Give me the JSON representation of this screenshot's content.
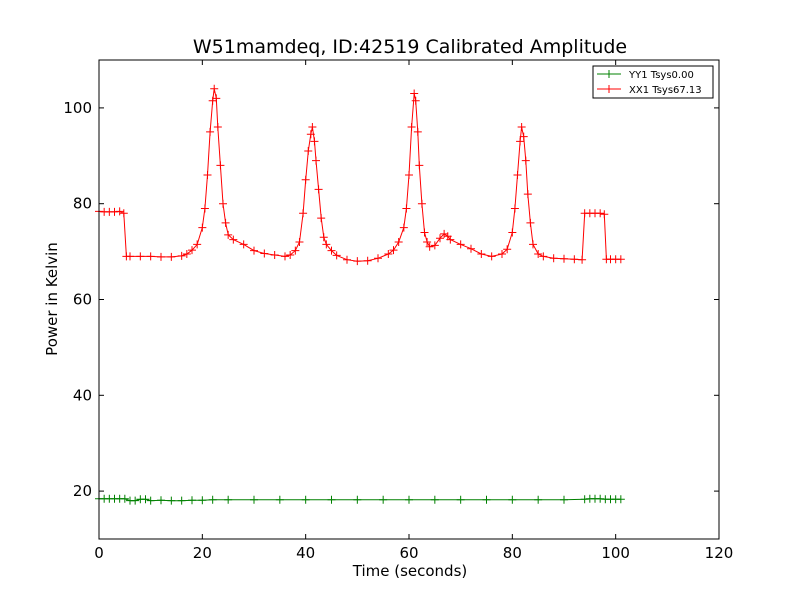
{
  "chart_data": {
    "type": "line",
    "title": "W51mamdeq, ID:42519 Calibrated Amplitude",
    "xlabel": "Time (seconds)",
    "ylabel": "Power in Kelvin",
    "xlim": [
      0,
      120
    ],
    "ylim": [
      10,
      110
    ],
    "xticks": [
      0,
      20,
      40,
      60,
      80,
      100,
      120
    ],
    "yticks": [
      20,
      40,
      60,
      80,
      100
    ],
    "grid": false,
    "legend_position": "top-right",
    "marker": "plus",
    "series": [
      {
        "name": "YY1 Tsys0.00",
        "color": "#008000",
        "points": [
          [
            0,
            18.4
          ],
          [
            1,
            18.4
          ],
          [
            2,
            18.4
          ],
          [
            3,
            18.4
          ],
          [
            4,
            18.4
          ],
          [
            5,
            18.4
          ],
          [
            6,
            18.0
          ],
          [
            7,
            18.0
          ],
          [
            8,
            18.3
          ],
          [
            9,
            18.3
          ],
          [
            10,
            18.0
          ],
          [
            12,
            18.1
          ],
          [
            14,
            18.0
          ],
          [
            16,
            18.0
          ],
          [
            18,
            18.1
          ],
          [
            20,
            18.1
          ],
          [
            22,
            18.2
          ],
          [
            25,
            18.2
          ],
          [
            30,
            18.2
          ],
          [
            35,
            18.2
          ],
          [
            40,
            18.2
          ],
          [
            45,
            18.2
          ],
          [
            50,
            18.2
          ],
          [
            55,
            18.2
          ],
          [
            60,
            18.2
          ],
          [
            65,
            18.2
          ],
          [
            70,
            18.2
          ],
          [
            75,
            18.2
          ],
          [
            80,
            18.2
          ],
          [
            85,
            18.2
          ],
          [
            90,
            18.2
          ],
          [
            94,
            18.3
          ],
          [
            95,
            18.4
          ],
          [
            96,
            18.4
          ],
          [
            97,
            18.4
          ],
          [
            98,
            18.3
          ],
          [
            99,
            18.3
          ],
          [
            100,
            18.3
          ],
          [
            101,
            18.3
          ]
        ]
      },
      {
        "name": "XX1 Tsys67.13",
        "color": "#ff0000",
        "points": [
          [
            0,
            78.4
          ],
          [
            1,
            78.3
          ],
          [
            2,
            78.3
          ],
          [
            3,
            78.3
          ],
          [
            4,
            78.4
          ],
          [
            4.8,
            78.0
          ],
          [
            5.3,
            69.0
          ],
          [
            6,
            69.0
          ],
          [
            8,
            69.0
          ],
          [
            10,
            69.0
          ],
          [
            12,
            68.9
          ],
          [
            14,
            68.9
          ],
          [
            16,
            69.1
          ],
          [
            17,
            69.5
          ],
          [
            18,
            70.3
          ],
          [
            19,
            71.5
          ],
          [
            20,
            75.0
          ],
          [
            20.5,
            79.0
          ],
          [
            21,
            86.0
          ],
          [
            21.5,
            95.0
          ],
          [
            22,
            101.5
          ],
          [
            22.3,
            104.0
          ],
          [
            22.7,
            102.0
          ],
          [
            23,
            96.0
          ],
          [
            23.5,
            88.0
          ],
          [
            24,
            80.0
          ],
          [
            24.5,
            76.0
          ],
          [
            25,
            73.5
          ],
          [
            26,
            72.5
          ],
          [
            28,
            71.5
          ],
          [
            30,
            70.2
          ],
          [
            32,
            69.6
          ],
          [
            34,
            69.3
          ],
          [
            36,
            69.0
          ],
          [
            37,
            69.3
          ],
          [
            38,
            70.2
          ],
          [
            38.8,
            72.0
          ],
          [
            39.5,
            78.0
          ],
          [
            40,
            85.0
          ],
          [
            40.5,
            91.0
          ],
          [
            41,
            94.5
          ],
          [
            41.3,
            96.0
          ],
          [
            41.7,
            93.0
          ],
          [
            42,
            89.0
          ],
          [
            42.5,
            83.0
          ],
          [
            43,
            77.0
          ],
          [
            43.5,
            73.0
          ],
          [
            44,
            71.5
          ],
          [
            45,
            70.2
          ],
          [
            46,
            69.2
          ],
          [
            48,
            68.3
          ],
          [
            50,
            68.0
          ],
          [
            52,
            68.1
          ],
          [
            54,
            68.6
          ],
          [
            56,
            69.5
          ],
          [
            57,
            70.3
          ],
          [
            58,
            72.0
          ],
          [
            59,
            75.0
          ],
          [
            59.5,
            79.0
          ],
          [
            60,
            86.0
          ],
          [
            60.5,
            96.0
          ],
          [
            61,
            103.0
          ],
          [
            61.3,
            101.5
          ],
          [
            61.7,
            95.0
          ],
          [
            62,
            88.0
          ],
          [
            62.5,
            80.0
          ],
          [
            63,
            74.0
          ],
          [
            63.5,
            72.0
          ],
          [
            64,
            71.0
          ],
          [
            65,
            71.3
          ],
          [
            66,
            72.8
          ],
          [
            66.8,
            73.7
          ],
          [
            67.5,
            73.2
          ],
          [
            68,
            72.5
          ],
          [
            70,
            71.5
          ],
          [
            72,
            70.6
          ],
          [
            74,
            69.5
          ],
          [
            76,
            69.0
          ],
          [
            78,
            69.5
          ],
          [
            79,
            70.5
          ],
          [
            80,
            74.0
          ],
          [
            80.5,
            79.0
          ],
          [
            81,
            86.0
          ],
          [
            81.5,
            93.0
          ],
          [
            81.8,
            96.0
          ],
          [
            82.2,
            94.0
          ],
          [
            82.6,
            89.0
          ],
          [
            83,
            82.0
          ],
          [
            83.5,
            76.0
          ],
          [
            84,
            71.5
          ],
          [
            85,
            69.5
          ],
          [
            86,
            69.0
          ],
          [
            88,
            68.6
          ],
          [
            90,
            68.5
          ],
          [
            92,
            68.4
          ],
          [
            93.5,
            68.3
          ],
          [
            94,
            78.0
          ],
          [
            95,
            78.0
          ],
          [
            96,
            78.0
          ],
          [
            97,
            78.0
          ],
          [
            97.8,
            77.8
          ],
          [
            98.2,
            68.4
          ],
          [
            99,
            68.4
          ],
          [
            100,
            68.4
          ],
          [
            101,
            68.4
          ]
        ]
      }
    ]
  }
}
